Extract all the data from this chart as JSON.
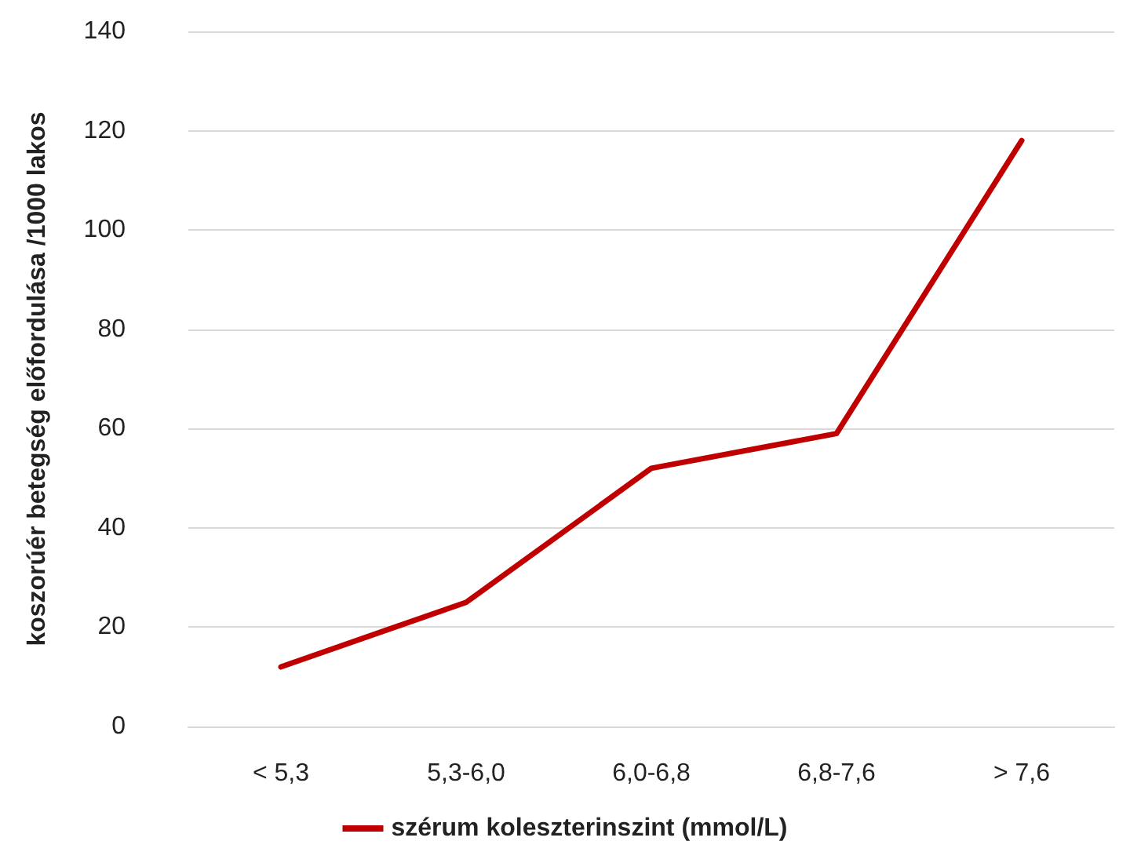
{
  "chart_data": {
    "type": "line",
    "ylabel": "koszorúér betegség előfordulása /1000 lakos",
    "categories": [
      "< 5,3",
      "5,3-6,0",
      "6,0-6,8",
      "6,8-7,6",
      "> 7,6"
    ],
    "series": [
      {
        "name": "szérum koleszterinszint (mmol/L)",
        "color": "#c00000",
        "values": [
          12,
          25,
          52,
          59,
          118
        ]
      }
    ],
    "ylim": [
      0,
      140
    ],
    "yticks": [
      0,
      20,
      40,
      60,
      80,
      100,
      120,
      140
    ],
    "grid": "y",
    "legend": "bottom",
    "marker": "none",
    "line_style": "solid"
  }
}
